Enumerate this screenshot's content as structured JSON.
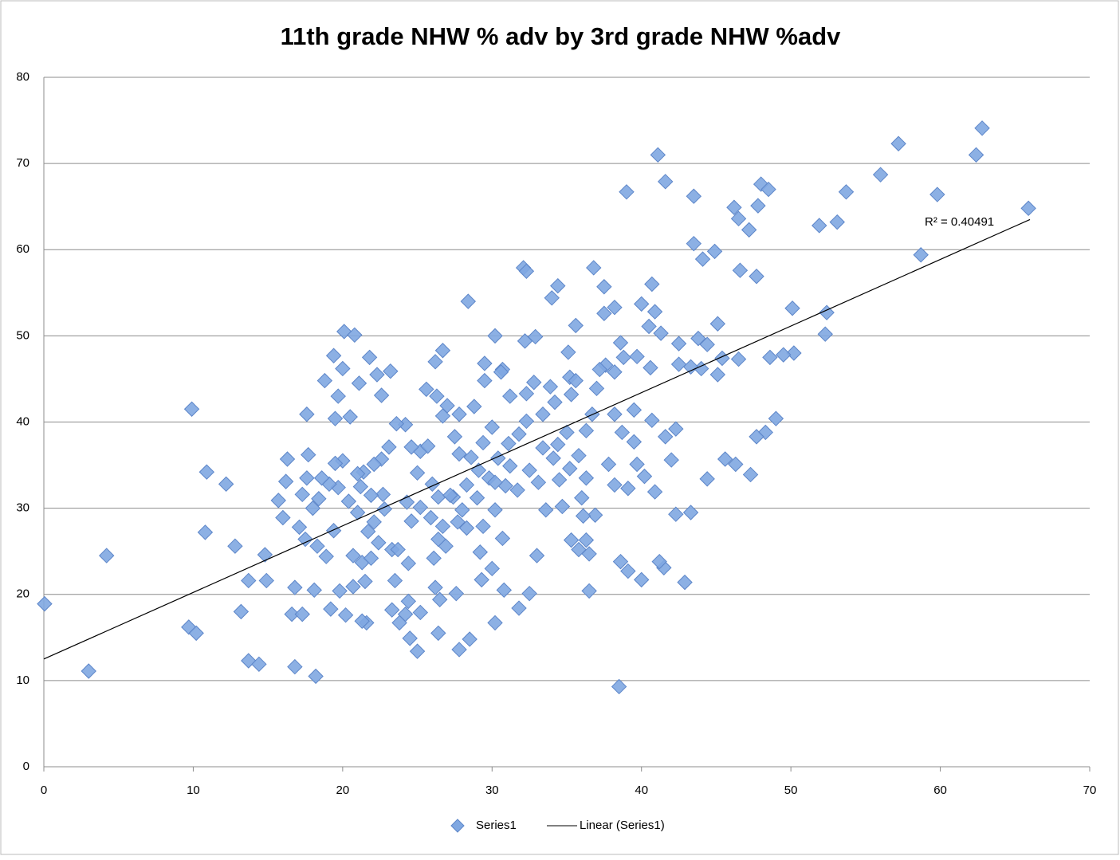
{
  "chart_data": {
    "type": "scatter",
    "title": "11th grade NHW % adv by 3rd grade NHW %adv",
    "xlim": [
      0,
      70
    ],
    "xticks": [
      0,
      10,
      20,
      30,
      40,
      50,
      60,
      70
    ],
    "ylim": [
      0,
      80
    ],
    "yticks": [
      0,
      10,
      20,
      30,
      40,
      50,
      60,
      70,
      80
    ],
    "grid": true,
    "legend": "bottom",
    "series": [
      {
        "name": "Series1",
        "color": "#7fa7e1",
        "x": [
          0.05,
          3.0,
          4.2,
          9.9,
          10.8,
          10.9,
          9.7,
          10.2,
          12.2,
          12.8,
          13.2,
          13.7,
          13.7,
          14.4,
          14.8,
          14.9,
          15.7,
          16.3,
          16.2,
          16.0,
          16.6,
          16.8,
          16.8,
          17.3,
          17.6,
          17.7,
          18.2,
          18.1,
          18.8,
          20.1,
          20.8,
          19.4,
          21.8,
          23.2,
          21.6,
          25.0,
          27.8,
          28.5,
          28.4,
          32.1,
          32.3,
          34.4,
          34.0,
          35.6,
          36.8,
          37.5,
          39.0,
          41.1,
          41.6,
          43.5,
          43.5,
          44.1,
          44.9,
          46.2,
          46.5,
          46.6,
          47.2,
          47.8,
          48.0,
          48.5,
          47.7,
          51.9,
          53.1,
          53.7,
          56.0,
          57.2,
          58.7,
          59.8,
          62.4,
          62.8,
          65.9,
          52.3,
          52.4,
          50.1,
          50.2,
          49.5,
          48.6,
          49.0,
          48.3,
          47.7,
          47.3,
          46.3,
          45.6,
          44.4,
          43.3,
          42.3,
          42.9,
          41.5,
          41.2,
          40.0,
          39.1,
          38.6,
          38.5,
          36.5,
          36.5,
          32.5,
          31.8,
          30.2,
          30.8,
          29.3,
          27.6,
          26.5,
          26.4,
          26.2,
          24.4,
          24.2,
          23.8,
          23.3,
          24.5,
          25.2,
          21.3,
          20.2,
          19.2,
          19.8,
          20.7,
          21.5,
          24.4,
          23.5,
          29.0,
          32.9,
          32.2,
          30.2,
          26.7,
          26.2,
          29.5,
          30.7,
          38.6,
          40.0,
          40.7,
          40.9,
          41.3,
          40.5,
          42.5,
          43.8,
          44.4,
          45.1,
          45.4,
          46.5,
          45.1,
          44.0,
          43.3,
          42.5,
          40.6,
          38.8,
          39.7,
          38.2,
          37.6,
          37.2,
          35.1,
          35.2,
          35.6,
          37.0,
          38.2,
          37.5,
          36.7,
          36.3,
          38.2,
          39.5,
          38.7,
          39.5,
          40.7,
          41.6,
          42.3,
          42.0,
          40.9,
          40.2,
          39.7,
          39.1,
          38.2,
          37.8,
          36.9,
          36.1,
          36.3,
          35.3,
          34.7,
          34.5,
          33.1,
          33.0,
          30.7,
          30.0,
          29.2,
          28.3,
          27.7,
          26.9,
          26.4,
          26.1,
          26.4,
          26.0,
          25.0,
          25.2,
          25.7,
          24.6,
          24.2,
          23.6,
          23.1,
          22.6,
          22.1,
          21.4,
          21.0,
          21.2,
          20.0,
          19.5,
          19.7,
          20.4,
          21.0,
          21.7,
          22.4,
          22.8,
          22.7,
          21.9,
          19.1,
          18.6,
          18.4,
          18.0,
          17.6,
          17.3,
          17.1,
          17.5,
          18.3,
          18.9,
          19.4,
          20.7,
          21.3,
          21.9,
          23.3,
          23.7,
          24.6,
          25.2,
          24.3,
          27.4,
          28.3,
          29.1,
          29.8,
          30.4,
          31.1,
          31.8,
          32.3,
          33.4,
          34.2,
          35.3,
          33.9,
          32.8,
          32.3,
          31.2,
          30.6,
          29.5,
          28.8,
          27.8,
          27.0,
          26.7,
          27.5,
          27.8,
          28.6,
          29.4,
          30.0,
          26.3,
          25.6,
          22.6,
          22.3,
          21.1,
          19.7,
          19.5,
          20.5,
          20.0,
          22.1,
          25.9,
          27.2,
          30.9,
          31.7,
          32.5,
          34.4,
          35.0,
          35.8,
          36.3,
          35.2,
          34.1,
          33.4,
          31.2,
          30.2,
          28.0,
          26.7,
          29.4,
          30.2,
          33.6,
          36.0,
          35.8
        ],
        "values": [
          18.9,
          11.1,
          24.5,
          41.5,
          27.2,
          34.2,
          16.2,
          15.5,
          32.8,
          25.6,
          18.0,
          21.6,
          12.3,
          11.9,
          24.6,
          21.6,
          30.9,
          35.7,
          33.1,
          28.9,
          17.7,
          11.6,
          20.8,
          17.7,
          40.9,
          36.2,
          10.5,
          20.5,
          44.8,
          50.5,
          50.1,
          47.7,
          47.5,
          45.9,
          16.7,
          13.4,
          13.6,
          14.8,
          54.0,
          57.9,
          57.5,
          55.8,
          54.4,
          51.2,
          57.9,
          55.7,
          66.7,
          71.0,
          67.9,
          66.2,
          60.7,
          58.9,
          59.8,
          64.9,
          63.6,
          57.6,
          62.3,
          65.1,
          67.6,
          67.0,
          56.9,
          62.8,
          63.2,
          66.7,
          68.7,
          72.3,
          59.4,
          66.4,
          71.0,
          74.1,
          64.8,
          50.2,
          52.7,
          53.2,
          48.0,
          47.8,
          47.5,
          40.4,
          38.8,
          38.3,
          33.9,
          35.1,
          35.7,
          33.4,
          29.5,
          29.3,
          21.4,
          23.1,
          23.8,
          21.7,
          22.7,
          23.8,
          9.3,
          20.4,
          24.7,
          20.1,
          18.4,
          16.7,
          20.5,
          21.7,
          20.1,
          19.4,
          15.5,
          20.8,
          19.2,
          17.7,
          16.7,
          18.2,
          14.9,
          17.9,
          16.9,
          17.6,
          18.3,
          20.4,
          20.9,
          21.5,
          23.6,
          21.6,
          31.2,
          49.9,
          49.4,
          50.0,
          48.3,
          47.0,
          46.8,
          46.1,
          49.2,
          53.7,
          56.0,
          52.8,
          50.3,
          51.1,
          49.1,
          49.7,
          49.0,
          51.4,
          47.4,
          47.3,
          45.5,
          46.2,
          46.4,
          46.7,
          46.3,
          47.5,
          47.6,
          45.8,
          46.6,
          46.1,
          48.1,
          45.2,
          44.8,
          43.9,
          53.3,
          52.6,
          40.9,
          39.0,
          40.9,
          41.4,
          38.8,
          37.7,
          40.2,
          38.3,
          39.2,
          35.6,
          31.9,
          33.7,
          35.1,
          32.3,
          32.7,
          35.1,
          29.2,
          29.1,
          26.3,
          26.3,
          30.2,
          33.3,
          33.0,
          24.5,
          26.5,
          23.0,
          24.9,
          27.7,
          28.4,
          25.6,
          26.4,
          24.2,
          31.3,
          32.8,
          34.1,
          36.6,
          37.2,
          37.1,
          39.7,
          39.8,
          37.1,
          35.7,
          35.1,
          34.2,
          34.0,
          32.5,
          35.5,
          35.2,
          32.4,
          30.8,
          29.5,
          27.3,
          26.0,
          29.9,
          31.6,
          31.5,
          32.8,
          33.5,
          31.1,
          30.0,
          33.5,
          31.6,
          27.8,
          26.4,
          25.6,
          24.4,
          27.4,
          24.5,
          23.7,
          24.2,
          25.2,
          25.2,
          28.5,
          30.1,
          30.7,
          31.3,
          32.7,
          34.4,
          33.5,
          35.8,
          37.5,
          38.6,
          40.1,
          40.9,
          42.3,
          43.2,
          44.1,
          44.6,
          43.3,
          43.0,
          45.8,
          44.8,
          41.8,
          40.9,
          41.9,
          40.7,
          38.3,
          36.3,
          35.9,
          37.6,
          39.4,
          43.0,
          43.8,
          43.1,
          45.5,
          44.5,
          43.0,
          40.4,
          40.6,
          46.2,
          28.4,
          28.9,
          31.5,
          32.6,
          32.1,
          34.4,
          37.4,
          38.8,
          36.1,
          33.5,
          34.6,
          35.8,
          37.0,
          34.9,
          33.0,
          29.8,
          27.9,
          27.9,
          29.8,
          29.8,
          31.2,
          25.2
        ]
      }
    ],
    "trendline": {
      "name": "Linear (Series1)",
      "color": "#000000",
      "x": [
        0,
        66
      ],
      "values": [
        12.5,
        63.5
      ]
    },
    "annotation": "R² = 0.40491"
  }
}
